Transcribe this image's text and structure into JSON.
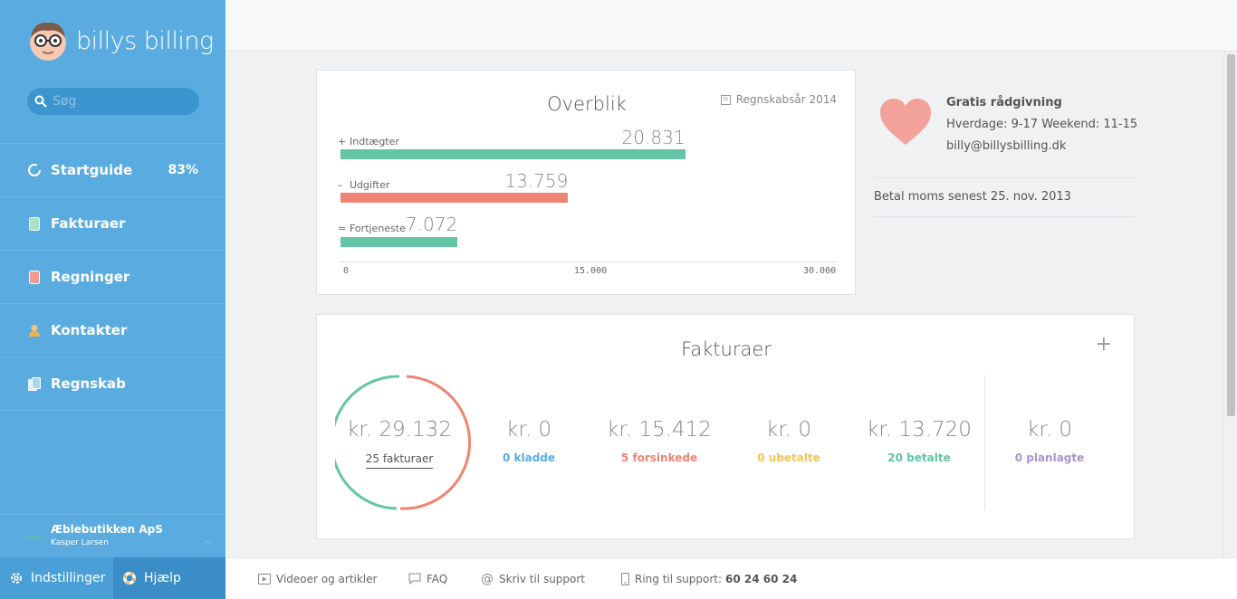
{
  "app": {
    "logo_text": "billys billing"
  },
  "search": {
    "placeholder": "Søg"
  },
  "sidebar": {
    "items": [
      {
        "label": "Startguide",
        "icon": "progress-icon",
        "badge": "83%"
      },
      {
        "label": "Fakturaer",
        "icon": "invoice-icon"
      },
      {
        "label": "Regninger",
        "icon": "bill-icon"
      },
      {
        "label": "Kontakter",
        "icon": "contact-icon"
      },
      {
        "label": "Regnskab",
        "icon": "accounting-icon"
      }
    ],
    "company": {
      "name": "Æblebutikken ApS",
      "user": "Kasper Larsen"
    },
    "settings_label": "Indstillinger",
    "help_label": "Hjælp"
  },
  "overview": {
    "title": "Overblik",
    "fiscal_year": "Regnskabsår 2014",
    "rows": [
      {
        "sign": "+",
        "label": "Indtægter",
        "value_text": "20.831"
      },
      {
        "sign": "–",
        "label": "Udgifter",
        "value_text": "13.759"
      },
      {
        "sign": "=",
        "label": "Fortjeneste",
        "value_text": "7.072"
      }
    ],
    "ticks": [
      "0",
      "15.000",
      "30.000"
    ]
  },
  "chart_data": {
    "type": "bar",
    "categories": [
      "Indtægter",
      "Udgifter",
      "Fortjeneste"
    ],
    "values": [
      20831,
      13759,
      7072
    ],
    "ylim": [
      0,
      30000
    ],
    "colors": [
      "#64c4a6",
      "#ee8473",
      "#64c4a6"
    ]
  },
  "info": {
    "title": "Gratis rådgivning",
    "hours": "Hverdage: 9-17 Weekend: 11-15",
    "email": "billy@billysbilling.dk",
    "vat_notice": "Betal moms senest 25. nov. 2013"
  },
  "invoices": {
    "title": "Fakturaer",
    "total_amount": "kr. 29.132",
    "total_count": "25 fakturaer",
    "stats": [
      {
        "amount": "kr. 0",
        "label": "0 kladde",
        "color": "#5aace0"
      },
      {
        "amount": "kr. 15.412",
        "label": "5 forsinkede",
        "color": "#ee8473"
      },
      {
        "amount": "kr. 0",
        "label": "0 ubetalte",
        "color": "#f2c45a"
      },
      {
        "amount": "kr. 13.720",
        "label": "20 betalte",
        "color": "#64c4a6"
      },
      {
        "amount": "kr. 0",
        "label": "0 planlagte",
        "color": "#a994cc"
      }
    ]
  },
  "footer": {
    "videos": "Videoer og artikler",
    "faq": "FAQ",
    "write_support": "Skriv til support",
    "call_support": "Ring til support:",
    "phone": "60 24 60 24"
  }
}
